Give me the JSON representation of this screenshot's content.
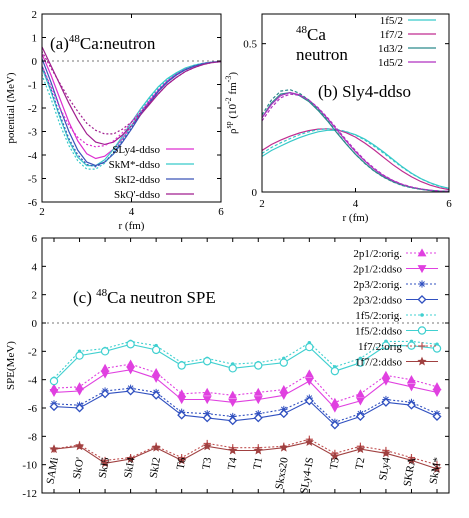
{
  "chart_data": [
    {
      "id": "a",
      "type": "line",
      "title_prefix": "(a)",
      "title_sup": "48",
      "title_main": "Ca:neutron",
      "xlabel": "r (fm)",
      "ylabel": "potential (MeV)",
      "xlim": [
        2,
        6
      ],
      "ylim": [
        -6,
        2
      ],
      "xticks": [
        2,
        4,
        6
      ],
      "yticks": [
        -6,
        -5,
        -4,
        -3,
        -2,
        -1,
        0,
        1,
        2
      ],
      "legend_position": "bottom-right",
      "series": [
        {
          "name": "SLy4-ddso",
          "color": "#dd2fd0",
          "dash": "",
          "x": [
            1.8,
            2.0,
            2.2,
            2.4,
            2.6,
            2.8,
            3.0,
            3.2,
            3.4,
            3.6,
            3.8,
            4.0,
            4.2,
            4.4,
            4.6,
            4.8,
            5.0,
            5.2,
            5.4,
            5.6,
            5.8,
            6.0
          ],
          "y": [
            0.9,
            0.3,
            -0.6,
            -1.6,
            -2.6,
            -3.4,
            -3.95,
            -4.15,
            -4.05,
            -3.75,
            -3.3,
            -2.75,
            -2.2,
            -1.7,
            -1.25,
            -0.85,
            -0.55,
            -0.35,
            -0.2,
            -0.1,
            -0.05,
            -0.02
          ]
        },
        {
          "name": "SkM*-ddso",
          "color": "#37c9c9",
          "dash": "",
          "x": [
            1.8,
            2.0,
            2.2,
            2.4,
            2.6,
            2.8,
            3.0,
            3.2,
            3.4,
            3.6,
            3.8,
            4.0,
            4.2,
            4.4,
            4.6,
            4.8,
            5.0,
            5.2,
            5.4,
            5.6,
            5.8,
            6.0
          ],
          "y": [
            0.4,
            -0.3,
            -1.3,
            -2.4,
            -3.4,
            -4.1,
            -4.45,
            -4.45,
            -4.2,
            -3.75,
            -3.2,
            -2.6,
            -2.05,
            -1.55,
            -1.1,
            -0.75,
            -0.5,
            -0.3,
            -0.18,
            -0.1,
            -0.05,
            -0.02
          ]
        },
        {
          "name": "SkI2-ddso",
          "color": "#3a53b8",
          "dash": "",
          "x": [
            1.8,
            2.0,
            2.2,
            2.4,
            2.6,
            2.8,
            3.0,
            3.2,
            3.4,
            3.6,
            3.8,
            4.0,
            4.2,
            4.4,
            4.6,
            4.8,
            5.0,
            5.2,
            5.4,
            5.6,
            5.8,
            6.0
          ],
          "y": [
            0.8,
            0.1,
            -0.9,
            -2.0,
            -3.0,
            -3.8,
            -4.3,
            -4.45,
            -4.3,
            -3.95,
            -3.45,
            -2.9,
            -2.3,
            -1.8,
            -1.3,
            -0.9,
            -0.6,
            -0.38,
            -0.22,
            -0.12,
            -0.06,
            -0.02
          ]
        },
        {
          "name": "SkO'-ddso",
          "color": "#a01f8f",
          "dash": "",
          "x": [
            1.8,
            2.0,
            2.2,
            2.4,
            2.6,
            2.8,
            3.0,
            3.2,
            3.4,
            3.6,
            3.8,
            4.0,
            4.2,
            4.4,
            4.6,
            4.8,
            5.0,
            5.2,
            5.4,
            5.6,
            5.8,
            6.0
          ],
          "y": [
            1.3,
            0.6,
            -0.2,
            -1.0,
            -1.8,
            -2.5,
            -3.1,
            -3.45,
            -3.55,
            -3.45,
            -3.15,
            -2.75,
            -2.3,
            -1.85,
            -1.4,
            -1.0,
            -0.7,
            -0.45,
            -0.28,
            -0.15,
            -0.07,
            -0.03
          ]
        },
        {
          "name": "",
          "color": "#dd2fd0",
          "dash": "2,2",
          "x": [
            1.8,
            2.0,
            2.2,
            2.4,
            2.6,
            2.8,
            3.0,
            3.2,
            3.4,
            3.6,
            3.8,
            4.0,
            4.2,
            4.4,
            4.6,
            4.8,
            5.0,
            5.2,
            5.4,
            5.6,
            5.8,
            6.0
          ],
          "y": [
            0.6,
            -0.2,
            -1.1,
            -2.0,
            -2.75,
            -3.25,
            -3.55,
            -3.65,
            -3.6,
            -3.4,
            -3.05,
            -2.6,
            -2.1,
            -1.65,
            -1.2,
            -0.85,
            -0.55,
            -0.35,
            -0.2,
            -0.1,
            -0.05,
            -0.02
          ]
        },
        {
          "name": "",
          "color": "#37c9c9",
          "dash": "2,2",
          "x": [
            1.8,
            2.0,
            2.2,
            2.4,
            2.6,
            2.8,
            3.0,
            3.2,
            3.4,
            3.6,
            3.8,
            4.0,
            4.2,
            4.4,
            4.6,
            4.8,
            5.0,
            5.2,
            5.4,
            5.6,
            5.8,
            6.0
          ],
          "y": [
            0.2,
            -0.6,
            -1.6,
            -2.7,
            -3.6,
            -4.25,
            -4.6,
            -4.6,
            -4.35,
            -3.9,
            -3.35,
            -2.75,
            -2.15,
            -1.6,
            -1.15,
            -0.8,
            -0.52,
            -0.32,
            -0.18,
            -0.1,
            -0.05,
            -0.02
          ]
        },
        {
          "name": "",
          "color": "#3a53b8",
          "dash": "2,2",
          "x": [
            1.8,
            2.0,
            2.2,
            2.4,
            2.6,
            2.8,
            3.0,
            3.2,
            3.4,
            3.6,
            3.8,
            4.0,
            4.2,
            4.4,
            4.6,
            4.8,
            5.0,
            5.2,
            5.4,
            5.6,
            5.8,
            6.0
          ],
          "y": [
            0.5,
            -0.2,
            -1.2,
            -2.3,
            -3.3,
            -4.0,
            -4.4,
            -4.5,
            -4.3,
            -3.9,
            -3.4,
            -2.85,
            -2.25,
            -1.75,
            -1.25,
            -0.88,
            -0.58,
            -0.36,
            -0.21,
            -0.11,
            -0.05,
            -0.02
          ]
        },
        {
          "name": "",
          "color": "#a01f8f",
          "dash": "2,2",
          "x": [
            1.8,
            2.0,
            2.2,
            2.4,
            2.6,
            2.8,
            3.0,
            3.2,
            3.4,
            3.6,
            3.8,
            4.0,
            4.2,
            4.4,
            4.6,
            4.8,
            5.0,
            5.2,
            5.4,
            5.6,
            5.8,
            6.0
          ],
          "y": [
            1.0,
            0.4,
            -0.3,
            -0.95,
            -1.6,
            -2.15,
            -2.65,
            -2.95,
            -3.1,
            -3.1,
            -2.9,
            -2.6,
            -2.2,
            -1.8,
            -1.4,
            -1.0,
            -0.7,
            -0.45,
            -0.28,
            -0.15,
            -0.07,
            -0.03
          ]
        }
      ]
    },
    {
      "id": "b",
      "type": "line",
      "title_prefix": "(b)",
      "title_main": "Sly4-ddso",
      "inset_sup": "48",
      "inset_line1": "Ca",
      "inset_line2": "neutron",
      "xlabel": "r (fm)",
      "ylabel_main": "ρ",
      "ylabel_sup": "sp",
      "ylabel_rest": " (10",
      "ylabel_sup2": "-2",
      "ylabel_end": " fm",
      "ylabel_sup3": "-3",
      "ylabel_close": ")",
      "xlim": [
        2,
        6
      ],
      "ylim": [
        0,
        0.6
      ],
      "xticks": [
        2,
        4,
        6
      ],
      "yticks": [
        0,
        0.5
      ],
      "ytick_labels": [
        "0",
        "0.5"
      ],
      "legend_position": "top-right",
      "series": [
        {
          "name": "1f5/2",
          "color": "#37c9c9",
          "dash": "",
          "x": [
            2.0,
            2.2,
            2.4,
            2.6,
            2.8,
            3.0,
            3.2,
            3.4,
            3.6,
            3.8,
            4.0,
            4.2,
            4.4,
            4.6,
            4.8,
            5.0,
            5.2,
            5.4,
            5.6,
            5.8,
            6.0
          ],
          "y": [
            0.12,
            0.14,
            0.155,
            0.17,
            0.183,
            0.194,
            0.203,
            0.208,
            0.208,
            0.203,
            0.193,
            0.178,
            0.158,
            0.135,
            0.11,
            0.085,
            0.063,
            0.045,
            0.031,
            0.02,
            0.012
          ]
        },
        {
          "name": "1f7/2",
          "color": "#c02c90",
          "dash": "",
          "x": [
            2.0,
            2.2,
            2.4,
            2.6,
            2.8,
            3.0,
            3.2,
            3.4,
            3.6,
            3.8,
            4.0,
            4.2,
            4.4,
            4.6,
            4.8,
            5.0,
            5.2,
            5.4,
            5.6,
            5.8,
            6.0
          ],
          "y": [
            0.14,
            0.16,
            0.175,
            0.188,
            0.199,
            0.207,
            0.212,
            0.213,
            0.21,
            0.2,
            0.185,
            0.165,
            0.142,
            0.117,
            0.092,
            0.07,
            0.051,
            0.035,
            0.023,
            0.014,
            0.008
          ]
        },
        {
          "name": "1d3/2",
          "color": "#2c8a8c",
          "dash": "",
          "x": [
            2.0,
            2.2,
            2.4,
            2.6,
            2.8,
            3.0,
            3.2,
            3.4,
            3.6,
            3.8,
            4.0,
            4.2,
            4.4,
            4.6,
            4.8,
            5.0,
            5.2,
            5.4,
            5.6,
            5.8,
            6.0
          ],
          "y": [
            0.25,
            0.3,
            0.33,
            0.335,
            0.325,
            0.305,
            0.275,
            0.24,
            0.2,
            0.162,
            0.127,
            0.097,
            0.071,
            0.051,
            0.035,
            0.023,
            0.015,
            0.009,
            0.005,
            0.003,
            0.002
          ]
        },
        {
          "name": "1d5/2",
          "color": "#b030c0",
          "dash": "",
          "x": [
            2.0,
            2.2,
            2.4,
            2.6,
            2.8,
            3.0,
            3.2,
            3.4,
            3.6,
            3.8,
            4.0,
            4.2,
            4.4,
            4.6,
            4.8,
            5.0,
            5.2,
            5.4,
            5.6,
            5.8,
            6.0
          ],
          "y": [
            0.25,
            0.295,
            0.325,
            0.335,
            0.328,
            0.31,
            0.282,
            0.248,
            0.21,
            0.172,
            0.136,
            0.104,
            0.077,
            0.055,
            0.038,
            0.025,
            0.016,
            0.01,
            0.006,
            0.003,
            0.002
          ]
        },
        {
          "name": "",
          "color": "#37c9c9",
          "dash": "3,2",
          "x": [
            2.0,
            2.2,
            2.4,
            2.6,
            2.8,
            3.0,
            3.2,
            3.4,
            3.6,
            3.8,
            4.0,
            4.2,
            4.4,
            4.6,
            4.8,
            5.0,
            5.2,
            5.4,
            5.6,
            5.8,
            6.0
          ],
          "y": [
            0.13,
            0.15,
            0.166,
            0.18,
            0.193,
            0.203,
            0.21,
            0.213,
            0.211,
            0.204,
            0.192,
            0.175,
            0.154,
            0.131,
            0.107,
            0.083,
            0.062,
            0.044,
            0.03,
            0.019,
            0.012
          ]
        },
        {
          "name": "",
          "color": "#2c8a8c",
          "dash": "3,2",
          "x": [
            2.0,
            2.2,
            2.4,
            2.6,
            2.8,
            3.0,
            3.2,
            3.4,
            3.6,
            3.8,
            4.0,
            4.2,
            4.4,
            4.6,
            4.8,
            5.0,
            5.2,
            5.4,
            5.6,
            5.8,
            6.0
          ],
          "y": [
            0.26,
            0.31,
            0.34,
            0.345,
            0.333,
            0.31,
            0.279,
            0.242,
            0.202,
            0.163,
            0.127,
            0.096,
            0.07,
            0.05,
            0.034,
            0.022,
            0.014,
            0.009,
            0.005,
            0.003,
            0.002
          ]
        },
        {
          "name": "",
          "color": "#b030c0",
          "dash": "3,2",
          "x": [
            2.0,
            2.2,
            2.4,
            2.6,
            2.8,
            3.0,
            3.2,
            3.4,
            3.6,
            3.8,
            4.0,
            4.2,
            4.4,
            4.6,
            4.8,
            5.0,
            5.2,
            5.4,
            5.6,
            5.8,
            6.0
          ],
          "y": [
            0.24,
            0.285,
            0.318,
            0.33,
            0.326,
            0.31,
            0.284,
            0.251,
            0.214,
            0.176,
            0.14,
            0.107,
            0.08,
            0.057,
            0.039,
            0.026,
            0.017,
            0.01,
            0.006,
            0.003,
            0.002
          ]
        }
      ]
    },
    {
      "id": "c",
      "type": "line",
      "title_prefix": "(c)",
      "title_sup": "48",
      "title_main": "Ca neutron SPE",
      "ylabel": "SPE(MeV)",
      "ylim": [
        -12,
        6
      ],
      "yticks": [
        -12,
        -10,
        -8,
        -6,
        -4,
        -2,
        0,
        2,
        4,
        6
      ],
      "legend_position": "top-right",
      "categories": [
        "SAMi",
        "SkO'",
        "SkI5",
        "SkI4",
        "SkI2",
        "T6",
        "T3",
        "T4",
        "T1",
        "Skxs20",
        "SLy4-IS",
        "T5",
        "T2",
        "SLy4",
        "SKRA",
        "SkM*"
      ],
      "series": [
        {
          "name": "2p1/2:orig.",
          "color": "#e040e0",
          "dash": "2,2",
          "marker": "tri-up-filled",
          "values": [
            -4.6,
            -4.5,
            -3.2,
            -2.9,
            -3.5,
            -5.0,
            -4.9,
            -5.1,
            -4.9,
            -4.7,
            -3.6,
            -5.6,
            -5.0,
            -3.7,
            -4.0,
            -4.5
          ]
        },
        {
          "name": "2p1/2:ddso",
          "color": "#e040e0",
          "dash": "",
          "marker": "tri-down-filled",
          "values": [
            -4.9,
            -4.8,
            -3.6,
            -3.3,
            -3.9,
            -5.4,
            -5.4,
            -5.6,
            -5.4,
            -5.1,
            -4.1,
            -6.0,
            -5.5,
            -4.1,
            -4.5,
            -4.9
          ]
        },
        {
          "name": "2p3/2:orig.",
          "color": "#3050c0",
          "dash": "2,2",
          "marker": "star",
          "values": [
            -5.7,
            -5.8,
            -4.8,
            -4.6,
            -4.9,
            -6.3,
            -6.4,
            -6.6,
            -6.4,
            -6.1,
            -5.3,
            -7.0,
            -6.4,
            -5.4,
            -5.6,
            -6.4
          ]
        },
        {
          "name": "2p3/2:ddso",
          "color": "#3050c0",
          "dash": "",
          "marker": "diamond-open",
          "values": [
            -5.9,
            -6.0,
            -5.0,
            -4.8,
            -5.1,
            -6.5,
            -6.7,
            -6.9,
            -6.7,
            -6.4,
            -5.5,
            -7.2,
            -6.6,
            -5.6,
            -5.8,
            -6.6
          ]
        },
        {
          "name": "1f5/2:orig.",
          "color": "#40d0d0",
          "dash": "2,2",
          "marker": "dot",
          "values": [
            -3.9,
            -2.0,
            -1.8,
            -1.3,
            -1.6,
            -2.8,
            -2.5,
            -2.9,
            -2.8,
            -2.5,
            -1.4,
            -3.1,
            -2.5,
            -1.3,
            -1.3,
            -1.5
          ]
        },
        {
          "name": "1f5/2:ddso",
          "color": "#40d0d0",
          "dash": "",
          "marker": "circle-open",
          "values": [
            -4.1,
            -2.3,
            -2.0,
            -1.5,
            -1.9,
            -3.0,
            -2.7,
            -3.2,
            -3.0,
            -2.8,
            -1.7,
            -3.4,
            -2.8,
            -1.6,
            -1.6,
            -1.8
          ]
        },
        {
          "name": "1f7/2:orig",
          "color": "#c05050",
          "dash": "2,2",
          "marker": "plus",
          "values": [
            -8.9,
            -8.6,
            -9.7,
            -9.5,
            -8.7,
            -9.5,
            -8.5,
            -8.8,
            -8.8,
            -8.7,
            -8.2,
            -9.2,
            -8.7,
            -9.0,
            -9.5,
            -10.0
          ]
        },
        {
          "name": "1f7/2:ddso",
          "color": "#a04040",
          "dash": "",
          "marker": "star-filled",
          "values": [
            -8.9,
            -8.7,
            -9.9,
            -9.6,
            -8.8,
            -9.7,
            -8.7,
            -9.0,
            -9.0,
            -8.8,
            -8.4,
            -9.4,
            -8.9,
            -9.2,
            -9.7,
            -10.3
          ]
        }
      ]
    }
  ]
}
